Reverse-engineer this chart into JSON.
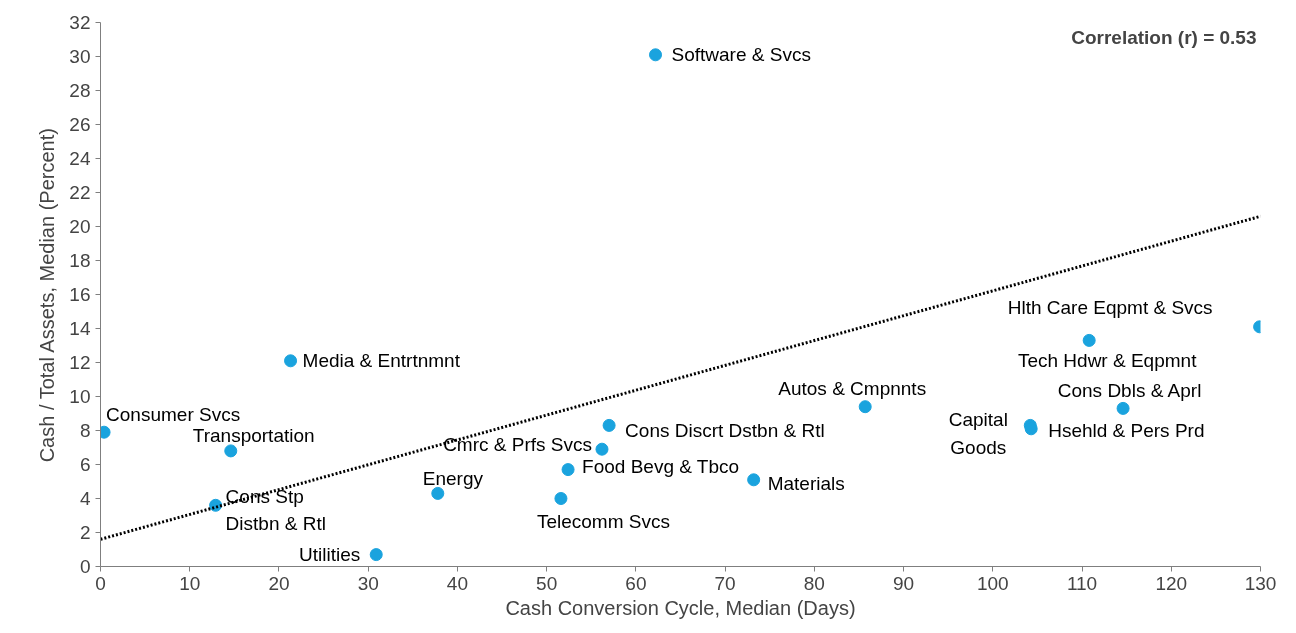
{
  "chart_data": {
    "type": "scatter",
    "xlabel": "Cash Conversion Cycle, Median (Days)",
    "ylabel": "Cash / Total Assets, Median (Percent)",
    "xlim": [
      0,
      130
    ],
    "xticks": [
      0,
      10,
      20,
      30,
      40,
      50,
      60,
      70,
      80,
      90,
      100,
      110,
      120,
      130
    ],
    "ylim": [
      0,
      32
    ],
    "yticks": [
      0,
      2,
      4,
      6,
      8,
      10,
      12,
      14,
      16,
      18,
      20,
      22,
      24,
      26,
      28,
      30,
      32
    ],
    "grid": false,
    "series": [
      {
        "marker": "circle",
        "color": "#1aa3de",
        "x": [
          0.4,
          14.6,
          12.9,
          21.3,
          30.9,
          37.8,
          62.2,
          51.6,
          52.4,
          56.2,
          57.0,
          73.2,
          85.7,
          104.2,
          104.3,
          110.8,
          114.6,
          129.9
        ],
        "values": [
          7.9,
          6.8,
          3.6,
          12.1,
          0.7,
          4.3,
          30.1,
          4.0,
          5.7,
          6.9,
          8.3,
          5.1,
          9.4,
          8.3,
          8.1,
          13.3,
          9.3,
          14.1
        ]
      },
      {
        "type": "line",
        "color": "#000000",
        "line_style": "dotted",
        "x": [
          0,
          130
        ],
        "values": [
          1.6,
          20.6
        ]
      }
    ],
    "annotations": [
      {
        "text": "Consumer Svcs",
        "x": 0.4,
        "y": 7.9
      },
      {
        "text": "Transportation",
        "x": 14.6,
        "y": 6.8
      },
      {
        "text": "Cons Stp\nDistbn & Rtl",
        "x": 12.9,
        "y": 3.6
      },
      {
        "text": "Media & Entrtnmnt",
        "x": 21.3,
        "y": 12.1
      },
      {
        "text": "Utilities",
        "x": 30.9,
        "y": 0.7
      },
      {
        "text": "Energy",
        "x": 37.8,
        "y": 4.3
      },
      {
        "text": "Software & Svcs",
        "x": 62.2,
        "y": 30.1
      },
      {
        "text": "Telecomm Svcs",
        "x": 51.6,
        "y": 4.0
      },
      {
        "text": "Food Bevg & Tbco",
        "x": 52.4,
        "y": 5.7
      },
      {
        "text": "Cmrc & Prfs Svcs",
        "x": 56.2,
        "y": 6.9
      },
      {
        "text": "Cons Discrt Dstbn & Rtl",
        "x": 57.0,
        "y": 8.3
      },
      {
        "text": "Materials",
        "x": 73.2,
        "y": 5.1
      },
      {
        "text": "Autos & Cmpnnts",
        "x": 85.7,
        "y": 9.4
      },
      {
        "text": "Capital\nGoods",
        "x": 104.2,
        "y": 8.3
      },
      {
        "text": "Hsehld & Pers Prd",
        "x": 104.3,
        "y": 8.1
      },
      {
        "text": "Tech Hdwr & Eqpmnt",
        "x": 110.8,
        "y": 13.3
      },
      {
        "text": "Cons Dbls & Aprl",
        "x": 114.6,
        "y": 9.3
      },
      {
        "text": "Hlth Care Eqpmt & Svcs",
        "x": 129.9,
        "y": 14.1
      },
      "Correlation (r) = 0.53"
    ]
  }
}
